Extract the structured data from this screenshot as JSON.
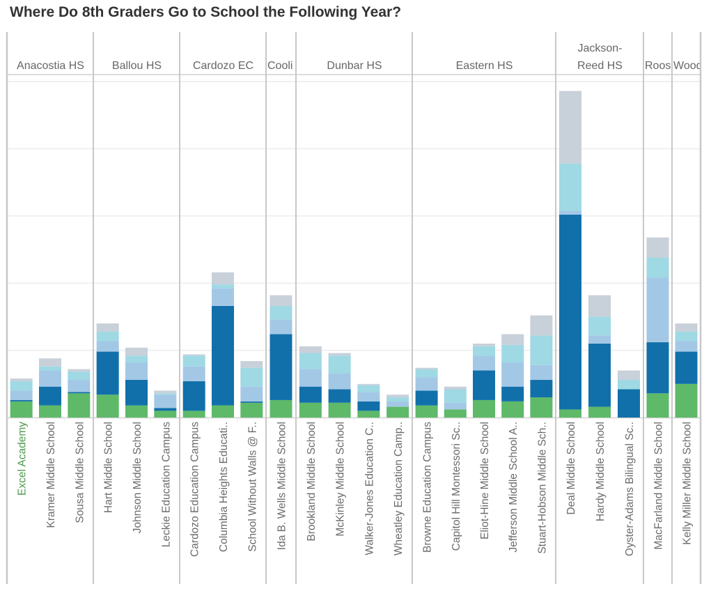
{
  "title": "Where Do 8th Graders Go to School the Following Year?",
  "chart_data": {
    "type": "bar",
    "stacked": true,
    "title": "Where Do 8th Graders Go to School the Following Year?",
    "xlabel": "",
    "ylabel": "",
    "ylim": [
      0,
      250
    ],
    "grid": true,
    "gridlines": [
      50,
      100,
      150,
      200,
      250
    ],
    "highlighted_category": "Excel Academy",
    "segment_colors": [
      "#5eb968",
      "#1170aa",
      "#a3c8e6",
      "#9ed9e4",
      "#c8d0d9"
    ],
    "label_color": "#6b6b6b",
    "highlight_color": "#4f9a4f",
    "groups": [
      {
        "name": "Anacostia HS",
        "categories": [
          {
            "name": "Excel Academy",
            "values": [
              12,
              1,
              7,
              7,
              2
            ]
          },
          {
            "name": "Kramer Middle School",
            "values": [
              9,
              14,
              12,
              3,
              6
            ]
          },
          {
            "name": "Sousa Middle School",
            "values": [
              18,
              1,
              9,
              6,
              2
            ]
          }
        ]
      },
      {
        "name": "Ballou HS",
        "categories": [
          {
            "name": "Hart Middle School",
            "values": [
              17,
              32,
              8,
              7,
              6
            ]
          },
          {
            "name": "Johnson Middle School",
            "values": [
              9,
              19,
              13,
              5,
              6
            ]
          },
          {
            "name": "Leckie Education Campus",
            "values": [
              5,
              2,
              10,
              1,
              2
            ]
          }
        ]
      },
      {
        "name": "Cardozo EC",
        "categories": [
          {
            "name": "Cardozo Education Campus",
            "values": [
              5,
              22,
              11,
              8,
              1
            ]
          },
          {
            "name": "Columbia Heights Educati..",
            "values": [
              9,
              74,
              13,
              3,
              9
            ]
          },
          {
            "name": "School Without Walls @ F..",
            "values": [
              11,
              1,
              11,
              14,
              5
            ]
          }
        ]
      },
      {
        "name": "Cooli",
        "narrow": true,
        "categories": [
          {
            "name": "Ida B. Wells Middle School",
            "values": [
              13,
              49,
              11,
              10,
              8
            ]
          }
        ]
      },
      {
        "name": "Dunbar HS",
        "categories": [
          {
            "name": "Brookland Middle School",
            "values": [
              11,
              12,
              13,
              12,
              5
            ]
          },
          {
            "name": "McKinley Middle School",
            "values": [
              11,
              10,
              12,
              13,
              2
            ]
          },
          {
            "name": "Walker-Jones Education C..",
            "values": [
              5,
              7,
              7,
              5,
              1
            ]
          },
          {
            "name": "Wheatley Education Camp..",
            "values": [
              8,
              0,
              4,
              3,
              2
            ]
          }
        ]
      },
      {
        "name": "Eastern HS",
        "categories": [
          {
            "name": "Browne Education Campus",
            "values": [
              9,
              11,
              10,
              6,
              1
            ]
          },
          {
            "name": "Capitol Hill Montessori Sc..",
            "values": [
              6,
              0,
              5,
              10,
              2
            ]
          },
          {
            "name": "Eliot-Hine Middle School",
            "values": [
              13,
              22,
              11,
              7,
              2
            ]
          },
          {
            "name": "Jefferson Middle School A..",
            "values": [
              12,
              11,
              18,
              13,
              8
            ]
          },
          {
            "name": "Stuart-Hobson Middle Sch..",
            "values": [
              15,
              13,
              11,
              22,
              15
            ]
          }
        ]
      },
      {
        "name": "Jackson-Reed HS",
        "categories": [
          {
            "name": "Deal Middle School",
            "values": [
              6,
              145,
              3,
              35,
              54
            ]
          },
          {
            "name": "Hardy Middle School",
            "values": [
              8,
              47,
              6,
              14,
              16
            ]
          },
          {
            "name": "Oyster-Adams Bilingual Sc..",
            "values": [
              0,
              21,
              0,
              7,
              7
            ]
          }
        ]
      },
      {
        "name": "Roos",
        "narrow": true,
        "categories": [
          {
            "name": "MacFarland Middle School",
            "values": [
              18,
              38,
              48,
              15,
              15
            ]
          }
        ]
      },
      {
        "name": "Wood",
        "narrow": true,
        "categories": [
          {
            "name": "Kelly Miller Middle School",
            "values": [
              25,
              24,
              8,
              7,
              6
            ]
          }
        ]
      }
    ]
  }
}
